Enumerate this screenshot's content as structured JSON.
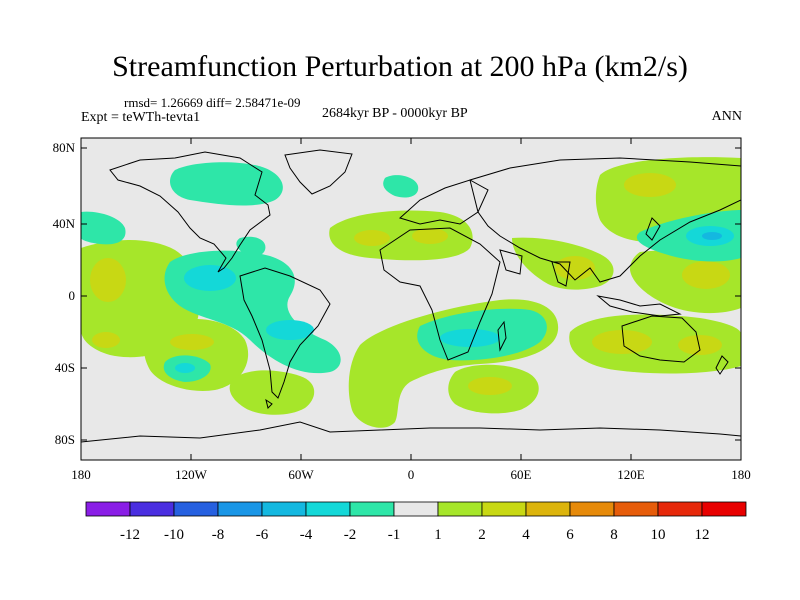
{
  "title": "Streamfunction Perturbation at 200 hPa (km2/s)",
  "stats": {
    "text": "rmsd= 1.26669 diff= 2.58471e-09"
  },
  "experiment": "Expt = teWTh-tevta1",
  "period": "2684kyr BP - 0000kyr BP",
  "season": "ANN",
  "axes": {
    "lat_labels": [
      "80N",
      "40N",
      "0",
      "40S",
      "80S"
    ],
    "lon_labels": [
      "180",
      "120W",
      "60W",
      "0",
      "60E",
      "120E",
      "180"
    ]
  },
  "colorbar": {
    "labels": [
      "-12",
      "-10",
      "-8",
      "-6",
      "-4",
      "-2",
      "-1",
      "1",
      "2",
      "4",
      "6",
      "8",
      "10",
      "12"
    ],
    "colors": [
      "#8a1ee6",
      "#4a2ee0",
      "#2660e0",
      "#1a96e6",
      "#14b8e0",
      "#14d8d8",
      "#2ee6a8",
      "#e8e8e8",
      "#a6e62a",
      "#c8d814",
      "#dcb40c",
      "#e68a0a",
      "#e65c0a",
      "#e6280a",
      "#e80000"
    ]
  },
  "colors": {
    "ocean_background": "#e8e8e8",
    "coastline": "#000000",
    "frame": "#000000"
  }
}
